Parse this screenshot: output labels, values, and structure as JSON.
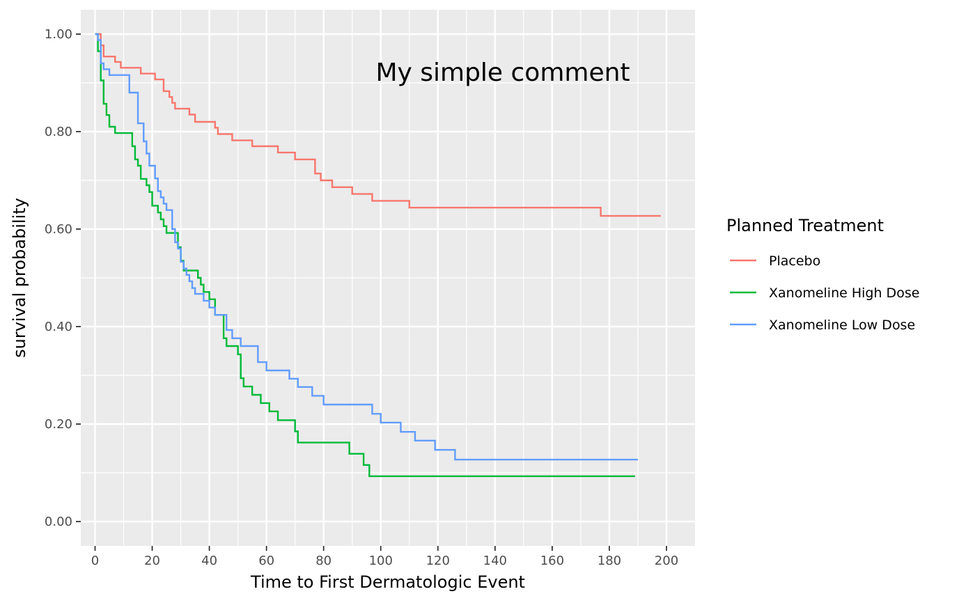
{
  "chart_data": {
    "type": "line",
    "step": true,
    "xlabel": "Time to First Dermatologic Event",
    "ylabel": "survival probability",
    "xlim": [
      -5,
      210
    ],
    "ylim": [
      -0.05,
      1.05
    ],
    "x_ticks": [
      0,
      20,
      40,
      60,
      80,
      100,
      120,
      140,
      160,
      180,
      200
    ],
    "x_tick_labels": [
      "0",
      "20",
      "40",
      "60",
      "80",
      "100",
      "120",
      "140",
      "160",
      "180",
      "200"
    ],
    "y_ticks": [
      0,
      0.2,
      0.4,
      0.6,
      0.8,
      1.0
    ],
    "y_tick_labels": [
      "0.00",
      "0.20",
      "0.40",
      "0.60",
      "0.80",
      "1.00"
    ],
    "grid": true,
    "annotation": {
      "text": "My simple comment",
      "x": 142,
      "y": 0.92
    },
    "legend": {
      "title": "Planned Treatment",
      "position": "right"
    },
    "series": [
      {
        "name": "Placebo",
        "color": "#F8766D",
        "x": [
          0,
          2,
          3,
          7,
          9,
          16,
          21,
          24,
          26,
          27,
          28,
          33,
          35,
          42,
          43,
          48,
          55,
          64,
          70,
          77,
          79,
          83,
          90,
          97,
          110,
          177,
          198
        ],
        "y": [
          1.0,
          0.977,
          0.954,
          0.943,
          0.931,
          0.919,
          0.907,
          0.883,
          0.871,
          0.859,
          0.847,
          0.835,
          0.82,
          0.808,
          0.795,
          0.782,
          0.77,
          0.757,
          0.743,
          0.714,
          0.7,
          0.686,
          0.672,
          0.658,
          0.644,
          0.627,
          0.627
        ]
      },
      {
        "name": "Xanomeline High Dose",
        "color": "#00BA38",
        "x": [
          0,
          1,
          2,
          3,
          4,
          5,
          7,
          13,
          14,
          15,
          16,
          18,
          19,
          20,
          22,
          23,
          24,
          25,
          29,
          30,
          31,
          36,
          37,
          38,
          40,
          42,
          45,
          46,
          47,
          50,
          51,
          52,
          55,
          58,
          61,
          64,
          70,
          71,
          89,
          94,
          96,
          189
        ],
        "y": [
          1.0,
          0.965,
          0.905,
          0.857,
          0.834,
          0.81,
          0.797,
          0.77,
          0.743,
          0.73,
          0.703,
          0.69,
          0.676,
          0.648,
          0.634,
          0.62,
          0.606,
          0.592,
          0.563,
          0.535,
          0.515,
          0.5,
          0.486,
          0.471,
          0.456,
          0.424,
          0.376,
          0.36,
          0.36,
          0.343,
          0.294,
          0.277,
          0.26,
          0.243,
          0.226,
          0.208,
          0.185,
          0.162,
          0.139,
          0.116,
          0.093,
          0.093
        ]
      },
      {
        "name": "Xanomeline Low Dose",
        "color": "#619CFF",
        "x": [
          0,
          1,
          2,
          3,
          5,
          12,
          15,
          17,
          18,
          19,
          21,
          22,
          23,
          24,
          25,
          27,
          28,
          29,
          30,
          31,
          32,
          33,
          34,
          35,
          38,
          40,
          42,
          46,
          47,
          48,
          51,
          57,
          60,
          68,
          71,
          76,
          80,
          97,
          100,
          107,
          112,
          119,
          126,
          190
        ],
        "y": [
          1.0,
          0.988,
          0.94,
          0.928,
          0.916,
          0.88,
          0.817,
          0.78,
          0.755,
          0.73,
          0.704,
          0.678,
          0.665,
          0.652,
          0.639,
          0.6,
          0.573,
          0.56,
          0.533,
          0.519,
          0.506,
          0.493,
          0.479,
          0.467,
          0.453,
          0.439,
          0.424,
          0.393,
          0.393,
          0.376,
          0.36,
          0.327,
          0.31,
          0.293,
          0.276,
          0.258,
          0.24,
          0.221,
          0.203,
          0.184,
          0.166,
          0.147,
          0.127,
          0.127
        ]
      }
    ]
  }
}
